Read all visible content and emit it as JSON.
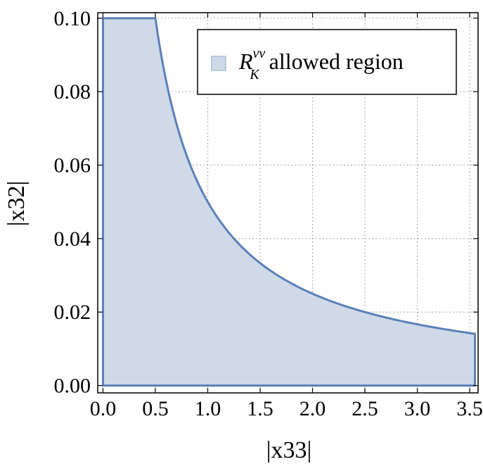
{
  "chart_data": {
    "type": "area",
    "title": "",
    "xlabel": "|x33|",
    "ylabel": "|x32|",
    "xlim": [
      -0.05,
      3.58
    ],
    "ylim": [
      -0.002,
      0.1015
    ],
    "xticks": [
      0.0,
      0.5,
      1.0,
      1.5,
      2.0,
      2.5,
      3.0,
      3.5
    ],
    "xtick_labels": [
      "0.0",
      "0.5",
      "1.0",
      "1.5",
      "2.0",
      "2.5",
      "3.0",
      "3.5"
    ],
    "yticks": [
      0.0,
      0.02,
      0.04,
      0.06,
      0.08,
      0.1
    ],
    "ytick_labels": [
      "0.00",
      "0.02",
      "0.04",
      "0.06",
      "0.08",
      "0.10"
    ],
    "grid": true,
    "legend_position": "top-right",
    "series": [
      {
        "name": "R_K^{νν} allowed region",
        "legend_main": "R",
        "legend_sub": "K",
        "legend_sup": "νν",
        "legend_rest": " allowed region",
        "boundary": "y = min(0.10, 0.05 / x) for 0 ≤ x ≤ 3.55",
        "x": [
          0.0,
          0.0,
          0.5,
          0.6,
          0.75,
          1.0,
          1.25,
          1.5,
          2.0,
          2.5,
          3.0,
          3.55,
          3.55
        ],
        "y": [
          0.0,
          0.1,
          0.1,
          0.0833,
          0.0667,
          0.05,
          0.04,
          0.0333,
          0.025,
          0.02,
          0.0167,
          0.0141,
          0.0
        ],
        "fill_color": "#cfd9e8",
        "line_color": "#5b80b8"
      }
    ]
  }
}
